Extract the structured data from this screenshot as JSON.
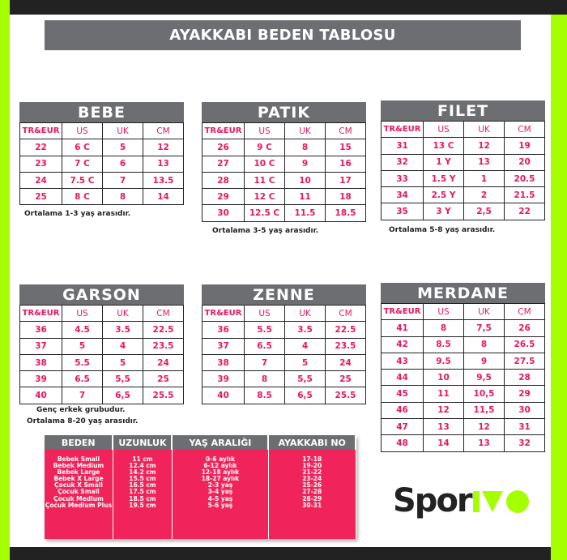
{
  "title": "AYAKKABI BEDEN TABLOSU",
  "columns": [
    "TR&EUR",
    "US",
    "UK",
    "CM"
  ],
  "tables": [
    {
      "name": "BEBE",
      "rows": [
        [
          "22",
          "6 C",
          "5",
          "12"
        ],
        [
          "23",
          "7 C",
          "6",
          "13"
        ],
        [
          "24",
          "7.5 C",
          "7",
          "13.5"
        ],
        [
          "25",
          "8 C",
          "8",
          "14"
        ]
      ],
      "notes": [
        "Ortalama 1-3 yaş arasıdır."
      ]
    },
    {
      "name": "PATIK",
      "rows": [
        [
          "26",
          "9 C",
          "8",
          "15"
        ],
        [
          "27",
          "10 C",
          "9",
          "16"
        ],
        [
          "28",
          "11 C",
          "10",
          "17"
        ],
        [
          "29",
          "12 C",
          "11",
          "18"
        ],
        [
          "30",
          "12.5 C",
          "11.5",
          "18.5"
        ]
      ],
      "notes": [
        "Ortalama 3-5 yaş arasıdır."
      ]
    },
    {
      "name": "FILET",
      "rows": [
        [
          "31",
          "13 C",
          "12",
          "19"
        ],
        [
          "32",
          "1 Y",
          "13",
          "20"
        ],
        [
          "33",
          "1.5 Y",
          "1",
          "20.5"
        ],
        [
          "34",
          "2.5 Y",
          "2",
          "21.5"
        ],
        [
          "35",
          "3 Y",
          "2,5",
          "22"
        ]
      ],
      "notes": [
        "Ortalama 5-8 yaş arasıdır."
      ]
    },
    {
      "name": "GARSON",
      "rows": [
        [
          "36",
          "4.5",
          "3.5",
          "22.5"
        ],
        [
          "37",
          "5",
          "4",
          "23.5"
        ],
        [
          "38",
          "5.5",
          "5",
          "24"
        ],
        [
          "39",
          "6.5",
          "5,5",
          "25"
        ],
        [
          "40",
          "7",
          "6,5",
          "25.5"
        ]
      ],
      "notes": [
        "Genç erkek grubudur.",
        "Ortalama 8-20 yaş arasıdır."
      ]
    },
    {
      "name": "ZENNE",
      "rows": [
        [
          "36",
          "5.5",
          "3.5",
          "22.5"
        ],
        [
          "37",
          "6.5",
          "4",
          "23.5"
        ],
        [
          "38",
          "7",
          "5",
          "24"
        ],
        [
          "39",
          "8",
          "5,5",
          "25"
        ],
        [
          "40",
          "8.5",
          "6,5",
          "25.5"
        ]
      ],
      "notes": []
    },
    {
      "name": "MERDANE",
      "rows": [
        [
          "41",
          "8",
          "7,5",
          "26"
        ],
        [
          "42",
          "8.5",
          "8",
          "26.5"
        ],
        [
          "43",
          "9.5",
          "9",
          "27.5"
        ],
        [
          "44",
          "10",
          "9,5",
          "28"
        ],
        [
          "45",
          "11",
          "10,5",
          "29"
        ],
        [
          "46",
          "12",
          "11,5",
          "30"
        ],
        [
          "47",
          "13",
          "12",
          "31"
        ],
        [
          "48",
          "14",
          "13",
          "32"
        ]
      ],
      "notes": []
    }
  ],
  "kids_table": {
    "headers": [
      "BEDEN",
      "UZUNLUK",
      "YAŞ ARALIĞI",
      "AYAKKABI NO"
    ],
    "rows": [
      [
        "Bebek Small",
        "11 cm",
        "0-6 aylık",
        "17-18"
      ],
      [
        "Bebek Medium",
        "12.4 cm",
        "6-12 aylık",
        "19-20"
      ],
      [
        "Bebek Large",
        "14.2 cm",
        "12-18 aylık",
        "21-22"
      ],
      [
        "Bebek X Large",
        "15.5 cm",
        "18-27 aylık",
        "23-24"
      ],
      [
        "Çocuk X Small",
        "16.5 cm",
        "2-3 yaş",
        "25-26"
      ],
      [
        "Çocuk Small",
        "17.5 cm",
        "3-4 yaş",
        "27-28"
      ],
      [
        "Çocuk Medium",
        "18.5 cm",
        "4-5 yaş",
        "28-29"
      ],
      [
        "Çocuk Medium Plus",
        "19.5 cm",
        "5-6 yaş",
        "30-31"
      ]
    ]
  },
  "logo": {
    "text_dark": "Spor",
    "text_green": "ivo"
  },
  "colors": {
    "accent_pink": "#f0245a",
    "header_gray": "#6d6e71",
    "brand_green": "#a6ff00",
    "dark": "#222222"
  }
}
